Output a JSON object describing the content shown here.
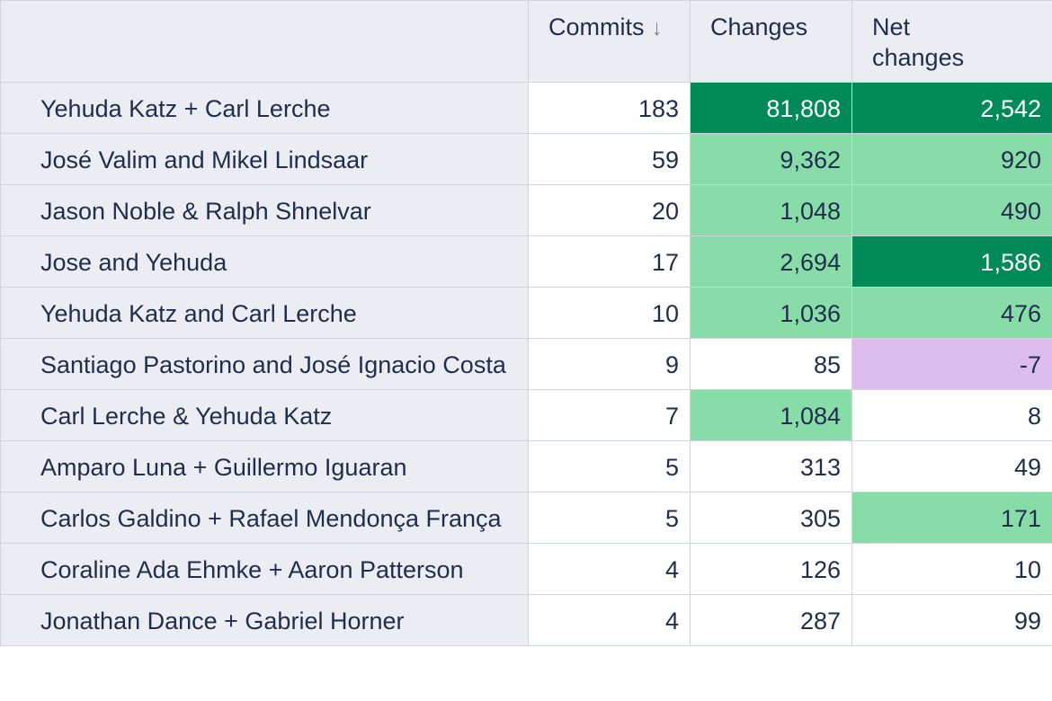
{
  "table": {
    "headers": [
      "",
      "Commits",
      "Changes",
      "Net changes"
    ],
    "sort_indicator": "↓",
    "rows": [
      {
        "cells": [
          "Yehuda Katz + Carl Lerche",
          "183",
          "81,808",
          "2,542"
        ],
        "colors": [
          "#ffffff",
          "#008a58",
          "#008a58"
        ]
      },
      {
        "cells": [
          "José Valim and Mikel Lindsaar",
          "59",
          "9,362",
          "920"
        ],
        "colors": [
          "#ffffff",
          "#88dca8",
          "#88dca8"
        ]
      },
      {
        "cells": [
          "Jason Noble & Ralph Shnelvar",
          "20",
          "1,048",
          "490"
        ],
        "colors": [
          "#ffffff",
          "#88dca8",
          "#88dca8"
        ]
      },
      {
        "cells": [
          "Jose and Yehuda",
          "17",
          "2,694",
          "1,586"
        ],
        "colors": [
          "#ffffff",
          "#88dca8",
          "#008a58"
        ]
      },
      {
        "cells": [
          "Yehuda Katz and Carl Lerche",
          "10",
          "1,036",
          "476"
        ],
        "colors": [
          "#ffffff",
          "#88dca8",
          "#88dca8"
        ]
      },
      {
        "cells": [
          "Santiago Pastorino and José Ignacio Costa",
          "9",
          "85",
          "-7"
        ],
        "colors": [
          "#ffffff",
          "#ffffff",
          "#dcbdec"
        ]
      },
      {
        "cells": [
          "Carl Lerche & Yehuda Katz",
          "7",
          "1,084",
          "8"
        ],
        "colors": [
          "#ffffff",
          "#88dca8",
          "#ffffff"
        ]
      },
      {
        "cells": [
          "Amparo Luna + Guillermo Iguaran",
          "5",
          "313",
          "49"
        ],
        "colors": [
          "#ffffff",
          "#ffffff",
          "#ffffff"
        ]
      },
      {
        "cells": [
          "Carlos Galdino + Rafael Mendonça França",
          "5",
          "305",
          "171"
        ],
        "colors": [
          "#ffffff",
          "#ffffff",
          "#88dca8"
        ]
      },
      {
        "cells": [
          "Coraline Ada Ehmke + Aaron Patterson",
          "4",
          "126",
          "10"
        ],
        "colors": [
          "#ffffff",
          "#ffffff",
          "#ffffff"
        ]
      },
      {
        "cells": [
          "Jonathan Dance + Gabriel Horner",
          "4",
          "287",
          "99"
        ],
        "colors": [
          "#ffffff",
          "#ffffff",
          "#ffffff"
        ]
      }
    ]
  }
}
